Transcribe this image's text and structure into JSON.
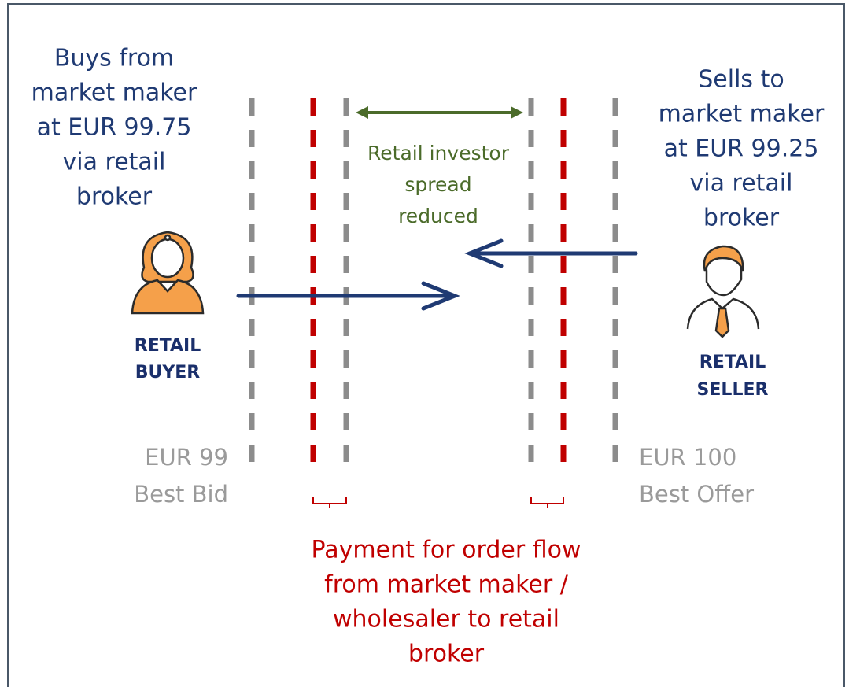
{
  "buyer_note": [
    "Buys from",
    "market maker",
    "at EUR 99.75",
    "via retail",
    "broker"
  ],
  "seller_note": [
    "Sells to",
    "market maker",
    "at EUR 99.25",
    "via retail",
    "broker"
  ],
  "spread_note": [
    "Retail investor",
    "spread",
    "reduced"
  ],
  "buyer_label": [
    "RETAIL",
    "BUYER"
  ],
  "seller_label": [
    "RETAIL",
    "SELLER"
  ],
  "best_bid": [
    "EUR 99",
    "Best Bid"
  ],
  "best_offer": [
    "EUR 100",
    "Best Offer"
  ],
  "pfof_note": [
    "Payment for order flow",
    "from market maker /",
    "wholesaler to retail",
    "broker"
  ]
}
